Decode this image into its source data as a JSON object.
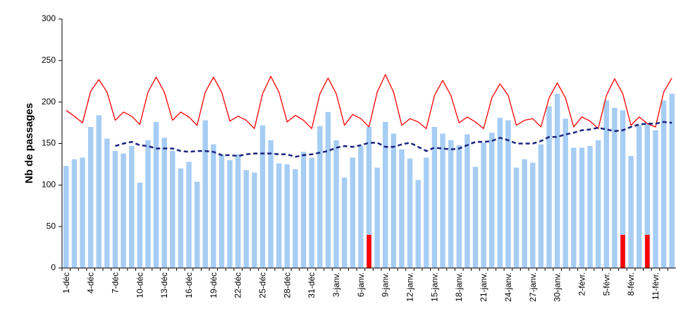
{
  "chart_data": {
    "type": "bar",
    "y_label": "Nb de passages",
    "categories": [
      "1-déc",
      null,
      null,
      "4-déc",
      null,
      null,
      "7-déc",
      null,
      null,
      "10-déc",
      null,
      null,
      "13-déc",
      null,
      null,
      "16-déc",
      null,
      null,
      "19-déc",
      null,
      null,
      "22-déc",
      null,
      null,
      "25-déc",
      null,
      null,
      "28-déc",
      null,
      null,
      "31-déc",
      null,
      null,
      "3-janv.",
      null,
      null,
      "6-janv.",
      null,
      null,
      "9-janv.",
      null,
      null,
      "12-janv.",
      null,
      null,
      "15-janv.",
      null,
      null,
      "18-janv.",
      null,
      null,
      "21-janv.",
      null,
      null,
      "24-janv.",
      null,
      null,
      "27-janv.",
      null,
      null,
      "30-janv.",
      null,
      null,
      "2-févr.",
      null,
      null,
      "5-févr.",
      null,
      null,
      "8-févr.",
      null,
      null,
      "11-févr.",
      null,
      null
    ],
    "series": [
      {
        "type": "bar",
        "color": "#a6cdf4",
        "values": [
          123,
          131,
          133,
          170,
          184,
          156,
          141,
          138,
          147,
          103,
          154,
          176,
          157,
          141,
          120,
          128,
          104,
          178,
          149,
          137,
          130,
          137,
          118,
          115,
          172,
          154,
          126,
          125,
          119,
          140,
          133,
          171,
          188,
          154,
          109,
          133,
          147,
          170,
          121,
          176,
          162,
          143,
          132,
          106,
          133,
          170,
          162,
          154,
          148,
          161,
          122,
          151,
          163,
          181,
          178,
          121,
          131,
          127,
          149,
          195,
          210,
          180,
          145,
          145,
          147,
          154,
          202,
          193,
          190,
          135,
          172,
          175,
          166,
          202,
          210
        ]
      },
      {
        "type": "alarm",
        "color": "#ff0000",
        "values": [
          null,
          null,
          null,
          null,
          null,
          null,
          null,
          null,
          null,
          null,
          null,
          null,
          null,
          null,
          null,
          null,
          null,
          null,
          null,
          null,
          null,
          null,
          null,
          null,
          null,
          null,
          null,
          null,
          null,
          null,
          null,
          null,
          null,
          null,
          null,
          null,
          null,
          40,
          null,
          null,
          null,
          null,
          null,
          null,
          null,
          null,
          null,
          null,
          null,
          null,
          null,
          null,
          null,
          null,
          null,
          null,
          null,
          null,
          null,
          null,
          null,
          null,
          null,
          null,
          null,
          null,
          null,
          null,
          40,
          null,
          null,
          40,
          null,
          null,
          null
        ]
      },
      {
        "type": "line",
        "color": "#ff0000",
        "values": [
          190,
          183,
          175,
          213,
          227,
          212,
          178,
          188,
          183,
          173,
          212,
          230,
          212,
          178,
          188,
          182,
          172,
          212,
          230,
          212,
          177,
          183,
          178,
          168,
          210,
          231,
          212,
          176,
          184,
          178,
          168,
          210,
          229,
          210,
          172,
          185,
          180,
          170,
          212,
          233,
          212,
          172,
          180,
          176,
          168,
          208,
          226,
          208,
          175,
          182,
          176,
          168,
          205,
          222,
          208,
          172,
          178,
          180,
          170,
          205,
          223,
          205,
          170,
          182,
          177,
          168,
          208,
          228,
          210,
          172,
          182,
          174,
          170,
          212,
          229
        ]
      },
      {
        "type": "dashed",
        "color": "#1a237e",
        "values": [
          null,
          null,
          null,
          null,
          null,
          null,
          147,
          150,
          152,
          148,
          147,
          144,
          144,
          144,
          141,
          140,
          141,
          141,
          140,
          136,
          136,
          135,
          137,
          138,
          138,
          138,
          137,
          137,
          134,
          136,
          137,
          139,
          141,
          145,
          147,
          146,
          148,
          151,
          151,
          146,
          146,
          149,
          151,
          146,
          141,
          145,
          144,
          143,
          144,
          148,
          152,
          152,
          153,
          157,
          154,
          150,
          150,
          150,
          153,
          158,
          158,
          161,
          163,
          166,
          167,
          169,
          167,
          165,
          166,
          170,
          173,
          174,
          174,
          176,
          175
        ]
      }
    ],
    "ylim": [
      0,
      300
    ],
    "yticks": [
      0,
      50,
      100,
      150,
      200,
      250,
      300
    ]
  }
}
